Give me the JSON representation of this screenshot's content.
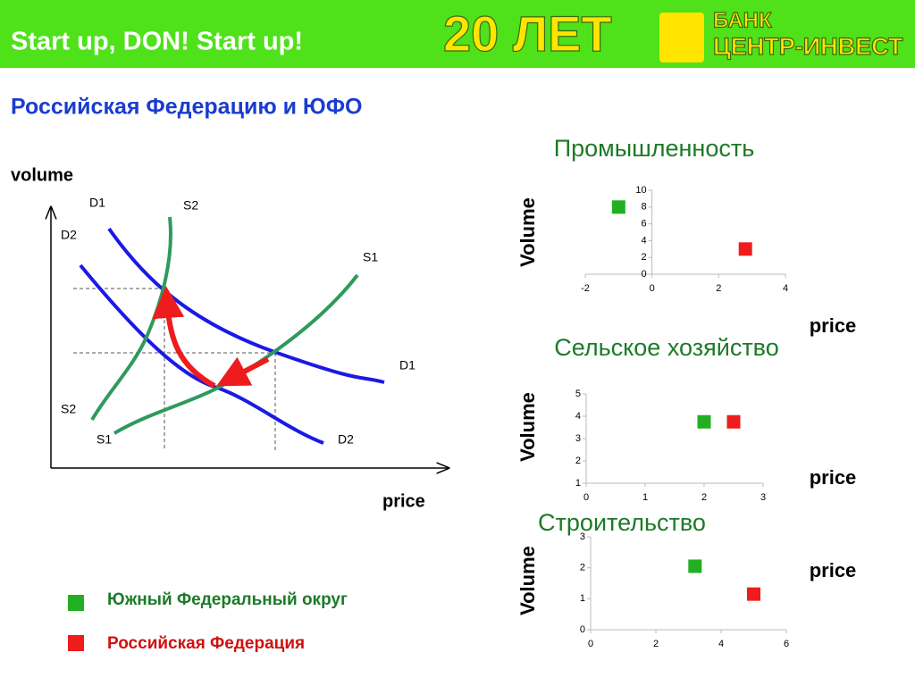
{
  "header": {
    "title": "Start up, DON! Start up!",
    "logo_big": "20 ЛЕТ",
    "logo_small1": "БАНК",
    "logo_small2": "ЦЕНТР-ИНВЕСТ"
  },
  "subtitle": "Российская Федерацию и ЮФО",
  "diagram": {
    "y_label": "volume",
    "x_label": "price",
    "labels": [
      "D1",
      "S2",
      "D2",
      "S1",
      "D1",
      "S2",
      "S1",
      "D2"
    ]
  },
  "legend": [
    {
      "label": "Южный Федеральный округ",
      "color": "#22b022"
    },
    {
      "label": "Российская Федерация",
      "color": "#ee1c1c"
    }
  ],
  "chart_data": [
    {
      "type": "scatter",
      "title": "Промышленность",
      "x_label": "price",
      "y_label": "Volume",
      "xlim": [
        -2,
        4
      ],
      "xticks": [
        -2,
        0,
        2,
        4
      ],
      "ylim": [
        0,
        10
      ],
      "yticks": [
        0,
        2,
        4,
        6,
        8,
        10
      ],
      "series": [
        {
          "color": "#22b022",
          "x": [
            -1
          ],
          "values": [
            8
          ]
        },
        {
          "color": "#ee1c1c",
          "x": [
            2.8
          ],
          "values": [
            3
          ]
        }
      ]
    },
    {
      "type": "scatter",
      "title": "Сельское хозяйство",
      "x_label": "price",
      "y_label": "Volume",
      "xlim": [
        0,
        3
      ],
      "xticks": [
        0,
        1,
        2,
        3
      ],
      "ylim": [
        1,
        5
      ],
      "yticks": [
        1,
        2,
        3,
        4,
        5
      ],
      "series": [
        {
          "color": "#22b022",
          "x": [
            2
          ],
          "values": [
            3.75
          ]
        },
        {
          "color": "#ee1c1c",
          "x": [
            2.5
          ],
          "values": [
            3.75
          ]
        }
      ]
    },
    {
      "type": "scatter",
      "title": "Строительство",
      "x_label": "price",
      "y_label": "Volume",
      "xlim": [
        0,
        6
      ],
      "xticks": [
        0,
        2,
        4,
        6
      ],
      "ylim": [
        0,
        3
      ],
      "yticks": [
        0,
        1,
        2,
        3
      ],
      "series": [
        {
          "color": "#22b022",
          "x": [
            3.2
          ],
          "values": [
            2.05
          ]
        },
        {
          "color": "#ee1c1c",
          "x": [
            5
          ],
          "values": [
            1.15
          ]
        }
      ]
    }
  ]
}
